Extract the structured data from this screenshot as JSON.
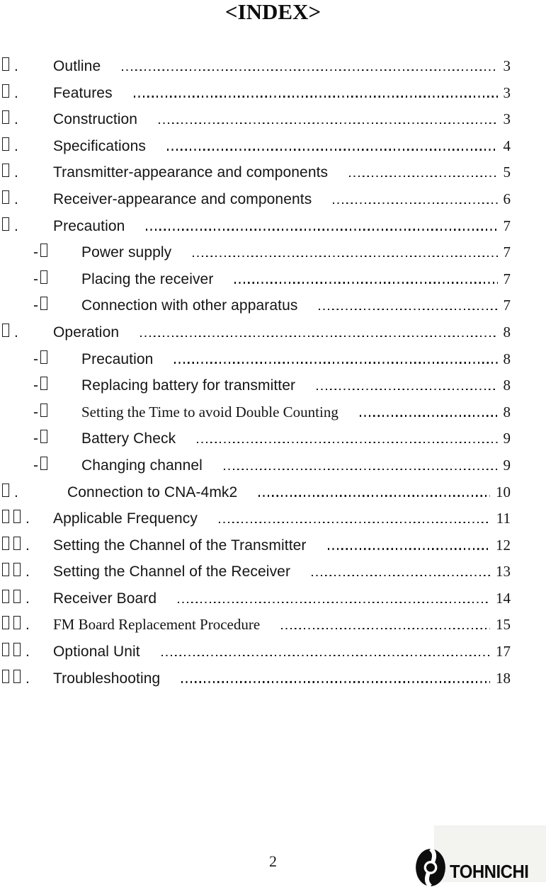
{
  "header": {
    "title": "<INDEX>"
  },
  "toc": {
    "items": [
      {
        "level": "main",
        "marker_boxes": 1,
        "marker_prefix": "",
        "marker_suffix": ".",
        "serif": false,
        "indent": false,
        "title": "Outline",
        "page": "3"
      },
      {
        "level": "main",
        "marker_boxes": 1,
        "marker_prefix": "",
        "marker_suffix": ".",
        "serif": false,
        "indent": false,
        "title": "Features",
        "page": "3"
      },
      {
        "level": "main",
        "marker_boxes": 1,
        "marker_prefix": "",
        "marker_suffix": ".",
        "serif": false,
        "indent": false,
        "title": "Construction",
        "page": "3"
      },
      {
        "level": "main",
        "marker_boxes": 1,
        "marker_prefix": "",
        "marker_suffix": ".",
        "serif": false,
        "indent": false,
        "title": "Specifications",
        "page": "4"
      },
      {
        "level": "main",
        "marker_boxes": 1,
        "marker_prefix": "",
        "marker_suffix": ".",
        "serif": false,
        "indent": false,
        "title": "Transmitter-appearance and components",
        "page": "5"
      },
      {
        "level": "main",
        "marker_boxes": 1,
        "marker_prefix": "",
        "marker_suffix": ".",
        "serif": false,
        "indent": false,
        "title": "Receiver-appearance and components",
        "page": "6"
      },
      {
        "level": "main",
        "marker_boxes": 1,
        "marker_prefix": "",
        "marker_suffix": ".",
        "serif": false,
        "indent": false,
        "title": "Precaution",
        "page": "7"
      },
      {
        "level": "sub",
        "marker_boxes": 1,
        "marker_prefix": "-",
        "marker_suffix": "",
        "serif": false,
        "indent": false,
        "title": "Power supply",
        "page": "7"
      },
      {
        "level": "sub",
        "marker_boxes": 1,
        "marker_prefix": "-",
        "marker_suffix": "",
        "serif": false,
        "indent": false,
        "title": "Placing the receiver",
        "page": "7"
      },
      {
        "level": "sub",
        "marker_boxes": 1,
        "marker_prefix": "-",
        "marker_suffix": "",
        "serif": false,
        "indent": false,
        "title": "Connection with other apparatus",
        "page": "7"
      },
      {
        "level": "main",
        "marker_boxes": 1,
        "marker_prefix": "",
        "marker_suffix": ".",
        "serif": false,
        "indent": false,
        "title": "Operation",
        "page": "8"
      },
      {
        "level": "sub",
        "marker_boxes": 1,
        "marker_prefix": "-",
        "marker_suffix": "",
        "serif": false,
        "indent": false,
        "title": "Precaution",
        "page": "8"
      },
      {
        "level": "sub",
        "marker_boxes": 1,
        "marker_prefix": "-",
        "marker_suffix": "",
        "serif": false,
        "indent": false,
        "title": "Replacing battery for transmitter",
        "page": "8"
      },
      {
        "level": "sub",
        "marker_boxes": 1,
        "marker_prefix": "-",
        "marker_suffix": "",
        "serif": true,
        "indent": false,
        "title": "Setting the Time to avoid Double Counting",
        "page": "8"
      },
      {
        "level": "sub",
        "marker_boxes": 1,
        "marker_prefix": "-",
        "marker_suffix": "",
        "serif": false,
        "indent": false,
        "title": "Battery Check",
        "page": "9"
      },
      {
        "level": "sub",
        "marker_boxes": 1,
        "marker_prefix": "-",
        "marker_suffix": "",
        "serif": false,
        "indent": false,
        "title": "Changing channel",
        "page": "9"
      },
      {
        "level": "main",
        "marker_boxes": 1,
        "marker_prefix": "",
        "marker_suffix": ".",
        "serif": false,
        "indent": true,
        "title": "Connection to CNA-4mk2",
        "page": "10"
      },
      {
        "level": "main",
        "marker_boxes": 2,
        "marker_prefix": "",
        "marker_suffix": ".",
        "serif": false,
        "indent": false,
        "title": "Applicable Frequency",
        "page": "11"
      },
      {
        "level": "main",
        "marker_boxes": 2,
        "marker_prefix": "",
        "marker_suffix": ".",
        "serif": false,
        "indent": false,
        "title": "Setting the Channel of the Transmitter",
        "page": "12"
      },
      {
        "level": "main",
        "marker_boxes": 2,
        "marker_prefix": "",
        "marker_suffix": ".",
        "serif": false,
        "indent": false,
        "title": "Setting the Channel of the Receiver",
        "page": "13"
      },
      {
        "level": "main",
        "marker_boxes": 2,
        "marker_prefix": "",
        "marker_suffix": ".",
        "serif": false,
        "indent": false,
        "title": "Receiver Board",
        "page": "14"
      },
      {
        "level": "main",
        "marker_boxes": 2,
        "marker_prefix": "",
        "marker_suffix": ".",
        "serif": true,
        "indent": false,
        "title": "FM Board Replacement Procedure",
        "page": "15"
      },
      {
        "level": "main",
        "marker_boxes": 2,
        "marker_prefix": "",
        "marker_suffix": ".",
        "serif": false,
        "indent": false,
        "title": "Optional Unit",
        "page": "17"
      },
      {
        "level": "main",
        "marker_boxes": 2,
        "marker_prefix": "",
        "marker_suffix": ".",
        "serif": false,
        "indent": false,
        "title": "Troubleshooting",
        "page": "18"
      }
    ]
  },
  "footer": {
    "page_number": "2",
    "logo_text": "TOHNICHI"
  },
  "icons": {
    "marker_box": "missing-glyph-box-icon",
    "emblem": "tohnichi-emblem-icon"
  },
  "colors": {
    "text": "#141414",
    "background": "#ffffff",
    "logo_panel": "#f3f3f0",
    "logo_black": "#0d0d0d"
  }
}
